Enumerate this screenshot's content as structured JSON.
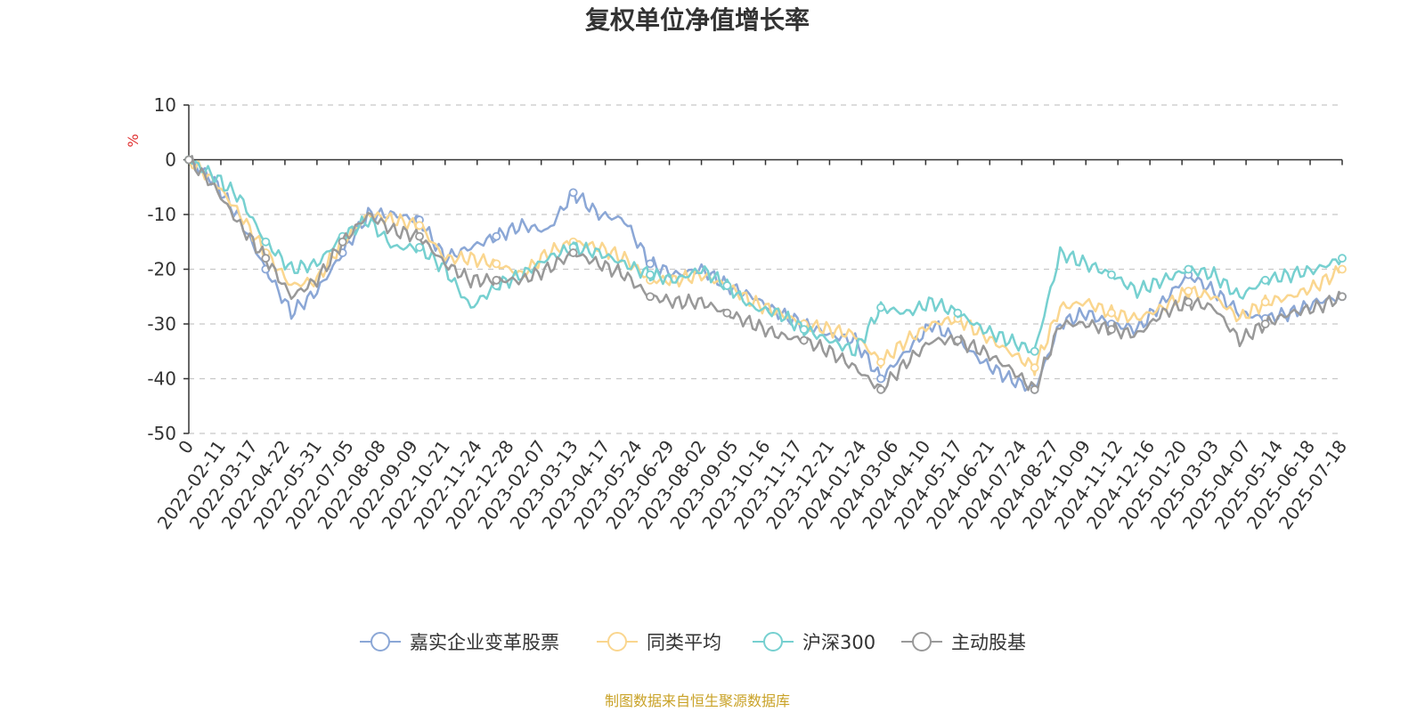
{
  "chart_data": {
    "type": "line",
    "title": "复权单位净值增长率",
    "ylabel": "%",
    "ylim": [
      -50,
      10
    ],
    "yticks": [
      10,
      0,
      -10,
      -20,
      -30,
      -40,
      -50
    ],
    "x_tick_labels": [
      "0",
      "2022-02-11",
      "2022-03-17",
      "2022-04-22",
      "2022-05-31",
      "2022-07-05",
      "2022-08-08",
      "2022-09-09",
      "2022-10-21",
      "2022-11-24",
      "2022-12-28",
      "2023-02-07",
      "2023-03-13",
      "2023-04-17",
      "2023-05-24",
      "2023-06-29",
      "2023-08-02",
      "2023-09-05",
      "2023-10-16",
      "2023-11-17",
      "2023-12-21",
      "2024-01-24",
      "2024-03-06",
      "2024-04-10",
      "2024-05-17",
      "2024-06-21",
      "2024-07-24",
      "2024-08-27",
      "2024-10-09",
      "2024-11-12",
      "2024-12-16",
      "2025-01-20",
      "2025-03-03",
      "2025-04-07",
      "2025-05-14",
      "2025-06-18",
      "2025-07-18"
    ],
    "grid": true,
    "legend_position": "bottom",
    "series": [
      {
        "name": "嘉实企业变革股票",
        "color": "#8ba7d6",
        "values": [
          0,
          -4,
          -11,
          -20,
          -28,
          -24,
          -17,
          -10,
          -10,
          -11,
          -18,
          -16,
          -14,
          -12,
          -13,
          -6,
          -10,
          -11,
          -19,
          -21,
          -20,
          -23,
          -25,
          -28,
          -30,
          -32,
          -33,
          -40,
          -35,
          -30,
          -33,
          -37,
          -40,
          -42,
          -30,
          -28,
          -30,
          -31,
          -26,
          -21,
          -24,
          -28,
          -29,
          -28,
          -26,
          -25
        ]
      },
      {
        "name": "同类平均",
        "color": "#fad68f",
        "values": [
          0,
          -4,
          -10,
          -17,
          -23,
          -22,
          -15,
          -10,
          -11,
          -12,
          -18,
          -18,
          -19,
          -21,
          -17,
          -15,
          -16,
          -18,
          -22,
          -22,
          -21,
          -23,
          -26,
          -28,
          -30,
          -31,
          -32,
          -37,
          -33,
          -30,
          -29,
          -32,
          -35,
          -38,
          -27,
          -26,
          -28,
          -29,
          -27,
          -24,
          -25,
          -29,
          -26,
          -25,
          -23,
          -20
        ]
      },
      {
        "name": "沪深300",
        "color": "#76d0d0",
        "values": [
          0,
          -3,
          -7,
          -15,
          -20,
          -19,
          -14,
          -11,
          -16,
          -16,
          -20,
          -27,
          -23,
          -21,
          -18,
          -16,
          -17,
          -19,
          -21,
          -22,
          -20,
          -23,
          -27,
          -28,
          -31,
          -33,
          -35,
          -27,
          -28,
          -26,
          -28,
          -31,
          -33,
          -35,
          -17,
          -19,
          -21,
          -24,
          -22,
          -20,
          -21,
          -25,
          -22,
          -21,
          -20,
          -18
        ]
      },
      {
        "name": "主动股基",
        "color": "#999999",
        "values": [
          0,
          -5,
          -12,
          -18,
          -25,
          -22,
          -15,
          -10,
          -13,
          -14,
          -19,
          -22,
          -22,
          -22,
          -20,
          -17,
          -19,
          -21,
          -25,
          -26,
          -26,
          -28,
          -30,
          -32,
          -33,
          -35,
          -38,
          -42,
          -37,
          -33,
          -33,
          -35,
          -38,
          -42,
          -30,
          -30,
          -31,
          -32,
          -28,
          -26,
          -27,
          -33,
          -30,
          -28,
          -27,
          -25
        ]
      }
    ]
  },
  "source_note": "制图数据来自恒生聚源数据库",
  "colors": {
    "source": "#c9a227",
    "axis_unit": "#e03030",
    "text": "#333333"
  }
}
